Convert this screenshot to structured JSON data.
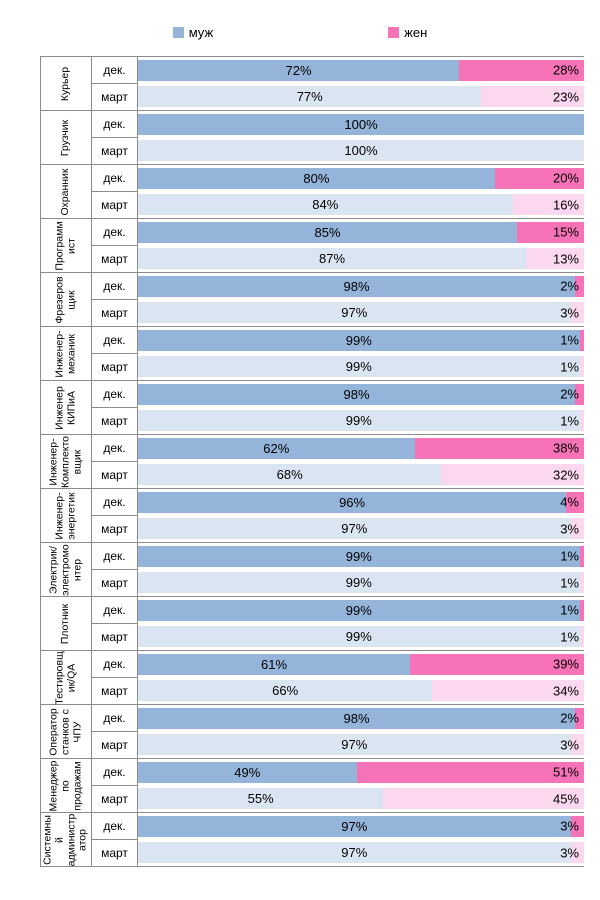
{
  "legend": {
    "items": [
      {
        "label": "муж",
        "color": "#94b4d9"
      },
      {
        "label": "жен",
        "color": "#f673b8"
      }
    ]
  },
  "colors": {
    "male_dec": "#94b4d9",
    "female_dec": "#f673b8",
    "male_mar": "#dbe5f1",
    "female_mar": "#fbd7f0",
    "grid": "#8c8c8c",
    "label": "#000000"
  },
  "chart_data": {
    "type": "bar",
    "orientation": "horizontal",
    "stacked": true,
    "unit": "%",
    "x_range": [
      0,
      100
    ],
    "series_labels": [
      "муж",
      "жен"
    ],
    "legend_position": "top",
    "groups": [
      {
        "category": "Курьер",
        "rows": [
          {
            "period": "дек.",
            "male": 72,
            "female": 28
          },
          {
            "period": "март",
            "male": 77,
            "female": 23
          }
        ]
      },
      {
        "category": "Грузчик",
        "rows": [
          {
            "period": "дек.",
            "male": 100,
            "female": 0
          },
          {
            "period": "март",
            "male": 100,
            "female": 0
          }
        ]
      },
      {
        "category": "Охранник",
        "rows": [
          {
            "period": "дек.",
            "male": 80,
            "female": 20
          },
          {
            "period": "март",
            "male": 84,
            "female": 16
          }
        ]
      },
      {
        "category": "Программист",
        "rows": [
          {
            "period": "дек.",
            "male": 85,
            "female": 15
          },
          {
            "period": "март",
            "male": 87,
            "female": 13
          }
        ]
      },
      {
        "category": "Фрезеровщик",
        "rows": [
          {
            "period": "дек.",
            "male": 98,
            "female": 2
          },
          {
            "period": "март",
            "male": 97,
            "female": 3
          }
        ]
      },
      {
        "category": "Инженер-механик",
        "rows": [
          {
            "period": "дек.",
            "male": 99,
            "female": 1
          },
          {
            "period": "март",
            "male": 99,
            "female": 1
          }
        ]
      },
      {
        "category": "Инженер КИПиА",
        "rows": [
          {
            "period": "дек.",
            "male": 98,
            "female": 2
          },
          {
            "period": "март",
            "male": 99,
            "female": 1
          }
        ]
      },
      {
        "category": "Инженер-Комплектовщик",
        "rows": [
          {
            "period": "дек.",
            "male": 62,
            "female": 38
          },
          {
            "period": "март",
            "male": 68,
            "female": 32
          }
        ]
      },
      {
        "category": "Инженер-энергетик",
        "rows": [
          {
            "period": "дек.",
            "male": 96,
            "female": 4
          },
          {
            "period": "март",
            "male": 97,
            "female": 3
          }
        ]
      },
      {
        "category": "Электрик/электромонтер",
        "rows": [
          {
            "period": "дек.",
            "male": 99,
            "female": 1
          },
          {
            "period": "март",
            "male": 99,
            "female": 1
          }
        ]
      },
      {
        "category": "Плотник",
        "rows": [
          {
            "period": "дек.",
            "male": 99,
            "female": 1
          },
          {
            "period": "март",
            "male": 99,
            "female": 1
          }
        ]
      },
      {
        "category": "Тестировщик/QA",
        "rows": [
          {
            "period": "дек.",
            "male": 61,
            "female": 39
          },
          {
            "period": "март",
            "male": 66,
            "female": 34
          }
        ]
      },
      {
        "category": "Оператор станков с ЧПУ",
        "rows": [
          {
            "period": "дек.",
            "male": 98,
            "female": 2
          },
          {
            "period": "март",
            "male": 97,
            "female": 3
          }
        ]
      },
      {
        "category": "Менеджер по продажам",
        "rows": [
          {
            "period": "дек.",
            "male": 49,
            "female": 51
          },
          {
            "period": "март",
            "male": 55,
            "female": 45
          }
        ]
      },
      {
        "category": "Системный администратор",
        "rows": [
          {
            "period": "дек.",
            "male": 97,
            "female": 3
          },
          {
            "period": "март",
            "male": 97,
            "female": 3
          }
        ]
      }
    ]
  }
}
